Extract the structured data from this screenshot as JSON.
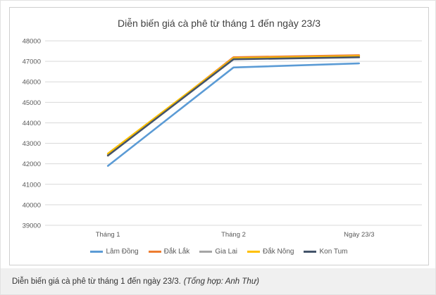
{
  "chart_data": {
    "type": "line",
    "title": "Diễn biến giá cà phê từ tháng 1 đến ngày 23/3",
    "categories": [
      "Tháng 1",
      "Tháng 2",
      "Ngày 23/3"
    ],
    "ylim": [
      39000,
      48000
    ],
    "yticks": [
      39000,
      40000,
      41000,
      42000,
      43000,
      44000,
      45000,
      46000,
      47000,
      48000
    ],
    "grid": true,
    "legend_position": "bottom",
    "series": [
      {
        "name": "Lâm Đồng",
        "color": "#5b9bd5",
        "values": [
          41900,
          46700,
          46900
        ]
      },
      {
        "name": "Đắk Lắk",
        "color": "#ed7d31",
        "values": [
          42400,
          47200,
          47300
        ]
      },
      {
        "name": "Gia Lai",
        "color": "#a5a5a5",
        "values": [
          42450,
          47150,
          47250
        ]
      },
      {
        "name": "Đắk Nông",
        "color": "#ffc000",
        "values": [
          42500,
          47150,
          47250
        ]
      },
      {
        "name": "Kon Tum",
        "color": "#44546a",
        "values": [
          42400,
          47100,
          47200
        ]
      }
    ]
  },
  "caption": {
    "text": "Diễn biến giá cà phê từ tháng 1 đến ngày 23/3.",
    "credit": "(Tổng hợp: Anh Thư)"
  }
}
